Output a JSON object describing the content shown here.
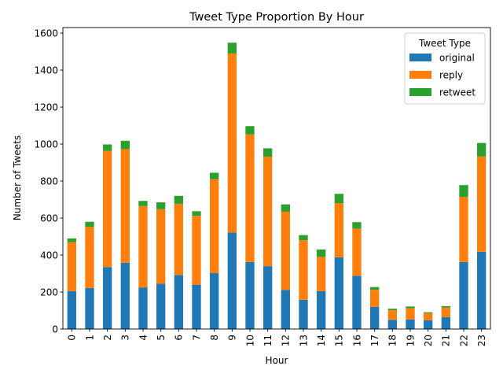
{
  "chart_data": {
    "type": "bar",
    "stacked": true,
    "title": "Tweet Type Proportion By Hour",
    "xlabel": "Hour",
    "ylabel": "Number of Tweets",
    "ylim": [
      0,
      1630
    ],
    "yticks": [
      0,
      200,
      400,
      600,
      800,
      1000,
      1200,
      1400,
      1600
    ],
    "categories": [
      "0",
      "1",
      "2",
      "3",
      "4",
      "5",
      "6",
      "7",
      "8",
      "9",
      "10",
      "11",
      "12",
      "13",
      "14",
      "15",
      "16",
      "17",
      "18",
      "19",
      "20",
      "21",
      "22",
      "23"
    ],
    "series": [
      {
        "name": "original",
        "color": "#1f77b4",
        "values": [
          205,
          222,
          335,
          358,
          225,
          245,
          292,
          240,
          302,
          522,
          362,
          340,
          212,
          158,
          205,
          388,
          288,
          120,
          50,
          52,
          48,
          64,
          362,
          418
        ]
      },
      {
        "name": "reply",
        "color": "#ff7f0e",
        "values": [
          265,
          330,
          628,
          615,
          440,
          403,
          385,
          372,
          508,
          968,
          690,
          592,
          422,
          322,
          185,
          293,
          255,
          92,
          52,
          60,
          38,
          52,
          353,
          515
        ]
      },
      {
        "name": "retweet",
        "color": "#2ca02c",
        "values": [
          20,
          28,
          35,
          45,
          28,
          37,
          43,
          25,
          35,
          58,
          45,
          45,
          40,
          28,
          40,
          50,
          35,
          15,
          8,
          10,
          5,
          8,
          63,
          73
        ]
      }
    ],
    "legend": {
      "title": "Tweet Type",
      "placement": "top-right"
    },
    "grid": false
  }
}
